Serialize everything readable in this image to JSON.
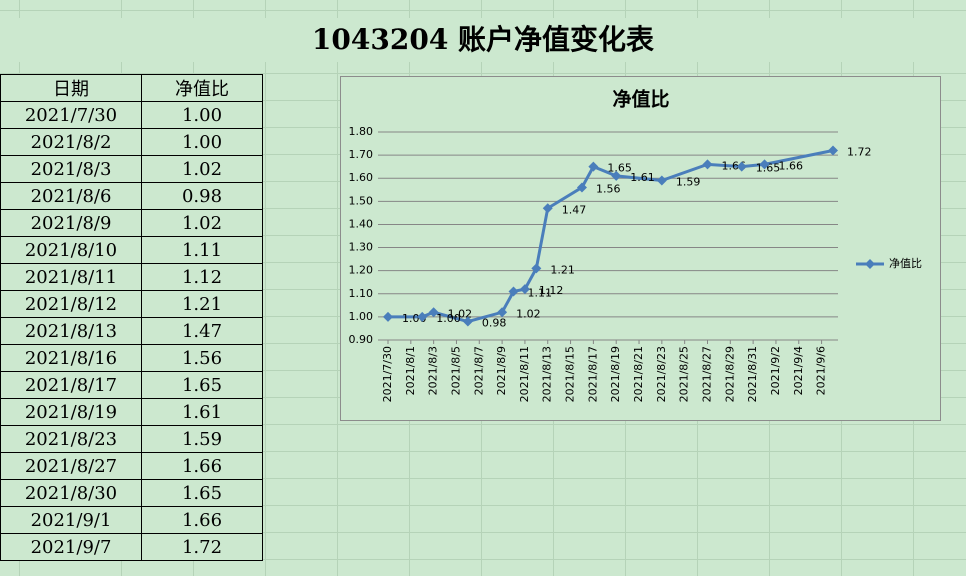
{
  "title": "1043204 账户净值变化表",
  "table": {
    "header": [
      "日期",
      "净值比"
    ],
    "rows": [
      [
        "2021/7/30",
        "1.00"
      ],
      [
        "2021/8/2",
        "1.00"
      ],
      [
        "2021/8/3",
        "1.02"
      ],
      [
        "2021/8/6",
        "0.98"
      ],
      [
        "2021/8/9",
        "1.02"
      ],
      [
        "2021/8/10",
        "1.11"
      ],
      [
        "2021/8/11",
        "1.12"
      ],
      [
        "2021/8/12",
        "1.21"
      ],
      [
        "2021/8/13",
        "1.47"
      ],
      [
        "2021/8/16",
        "1.56"
      ],
      [
        "2021/8/17",
        "1.65"
      ],
      [
        "2021/8/19",
        "1.61"
      ],
      [
        "2021/8/23",
        "1.59"
      ],
      [
        "2021/8/27",
        "1.66"
      ],
      [
        "2021/8/30",
        "1.65"
      ],
      [
        "2021/9/1",
        "1.66"
      ],
      [
        "2021/9/7",
        "1.72"
      ]
    ]
  },
  "chart_data": {
    "type": "line",
    "title": "净值比",
    "x": [
      "2021/7/30",
      "2021/8/2",
      "2021/8/3",
      "2021/8/6",
      "2021/8/9",
      "2021/8/10",
      "2021/8/11",
      "2021/8/12",
      "2021/8/13",
      "2021/8/16",
      "2021/8/17",
      "2021/8/19",
      "2021/8/23",
      "2021/8/27",
      "2021/8/30",
      "2021/9/1",
      "2021/9/7"
    ],
    "series": [
      {
        "name": "净值比",
        "color": "#4a7ebb",
        "values": [
          1.0,
          1.0,
          1.02,
          0.98,
          1.02,
          1.11,
          1.12,
          1.21,
          1.47,
          1.56,
          1.65,
          1.61,
          1.59,
          1.66,
          1.65,
          1.66,
          1.72
        ],
        "value_labels": [
          "1.00",
          "1.00",
          "1.02",
          "0.98",
          "1.02",
          "1.11",
          "1.12",
          "1.21",
          "1.47",
          "1.56",
          "1.65",
          "1.61",
          "1.59",
          "1.66",
          "1.65",
          "1.66",
          "1.72"
        ]
      }
    ],
    "xlim": [
      "2021/7/30",
      "2021/9/7"
    ],
    "xticks": [
      "2021/7/30",
      "2021/8/1",
      "2021/8/3",
      "2021/8/5",
      "2021/8/7",
      "2021/8/9",
      "2021/8/11",
      "2021/8/13",
      "2021/8/15",
      "2021/8/17",
      "2021/8/19",
      "2021/8/21",
      "2021/8/23",
      "2021/8/25",
      "2021/8/27",
      "2021/8/29",
      "2021/8/31",
      "2021/9/2",
      "2021/9/4",
      "2021/9/6"
    ],
    "ylim": [
      0.9,
      1.8
    ],
    "yticks": [
      {
        "value": 0.9,
        "label": "0.90"
      },
      {
        "value": 1.0,
        "label": "1.00"
      },
      {
        "value": 1.1,
        "label": "1.10"
      },
      {
        "value": 1.2,
        "label": "1.20"
      },
      {
        "value": 1.3,
        "label": "1.30"
      },
      {
        "value": 1.4,
        "label": "1.40"
      },
      {
        "value": 1.5,
        "label": "1.50"
      },
      {
        "value": 1.6,
        "label": "1.60"
      },
      {
        "value": 1.7,
        "label": "1.70"
      },
      {
        "value": 1.8,
        "label": "1.80"
      }
    ],
    "grid": true,
    "legend": "right"
  }
}
